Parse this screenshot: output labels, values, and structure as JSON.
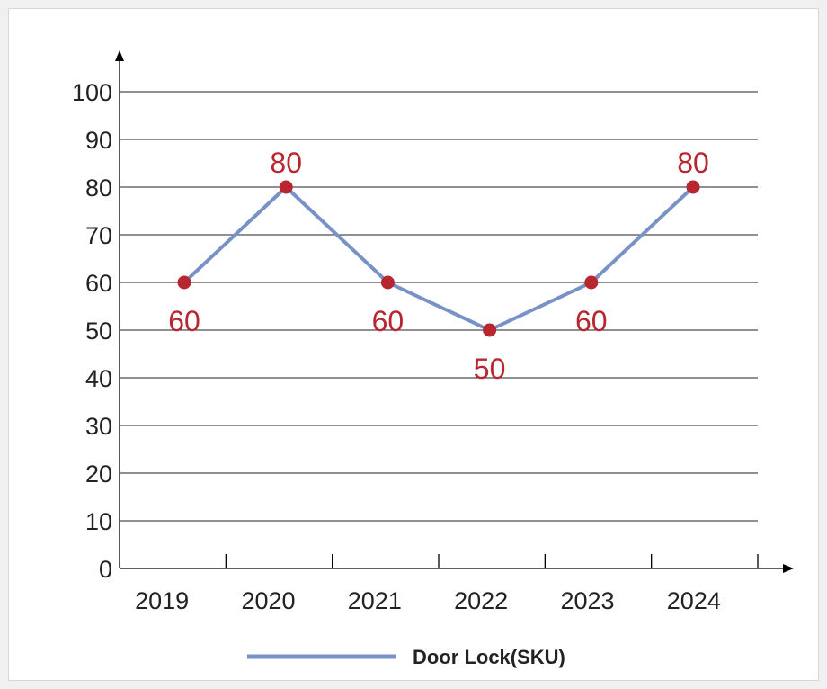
{
  "colors": {
    "line": "#7892c8",
    "marker": "#b8272f",
    "data_label": "#b8272f",
    "axis": "#000000",
    "grid": "#222222",
    "text": "#222222",
    "legend_text": "#222222"
  },
  "chart_data": {
    "type": "line",
    "title": "",
    "xlabel": "",
    "ylabel": "",
    "categories": [
      "2019",
      "2020",
      "2021",
      "2022",
      "2023",
      "2024"
    ],
    "series": [
      {
        "name": "Door Lock(SKU)",
        "values": [
          60,
          80,
          60,
          50,
          60,
          80
        ]
      }
    ],
    "ylim": [
      0,
      100
    ],
    "yticks": [
      "0",
      "10",
      "20",
      "30",
      "40",
      "50",
      "60",
      "70",
      "80",
      "90",
      "100"
    ],
    "grid": true,
    "legend": "bottom",
    "data_labels": [
      "60",
      "80",
      "60",
      "50",
      "60",
      "80"
    ],
    "data_label_positions": [
      "below",
      "above",
      "below",
      "below",
      "below",
      "above"
    ]
  }
}
